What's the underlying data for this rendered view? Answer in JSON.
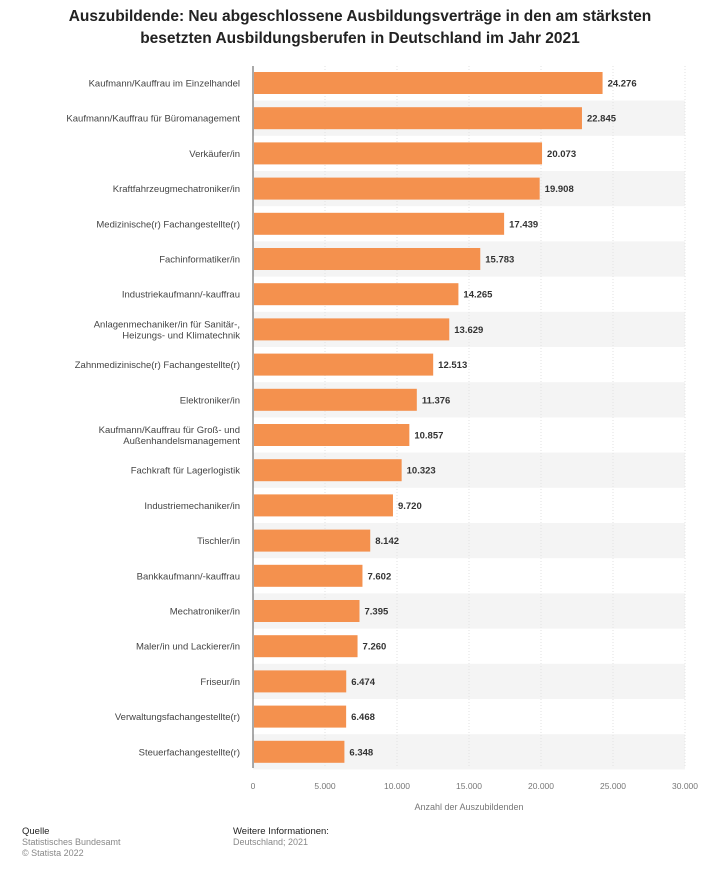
{
  "chart_data": {
    "type": "bar",
    "orientation": "horizontal",
    "title_lines": [
      "Auszubildende: Neu abgeschlossene Ausbildungsverträge in den am stärksten",
      "besetzten Ausbildungsberufen in Deutschland im Jahr 2021"
    ],
    "categories": [
      [
        "Kaufmann/Kauffrau im Einzelhandel"
      ],
      [
        "Kaufmann/Kauffrau für Büromanagement"
      ],
      [
        "Verkäufer/in"
      ],
      [
        "Kraftfahrzeugmechatroniker/in"
      ],
      [
        "Medizinische(r) Fachangestellte(r)"
      ],
      [
        "Fachinformatiker/in"
      ],
      [
        "Industriekaufmann/-kauffrau"
      ],
      [
        "Anlagenmechaniker/in für Sanitär-,",
        "Heizungs- und Klimatechnik"
      ],
      [
        "Zahnmedizinische(r) Fachangestellte(r)"
      ],
      [
        "Elektroniker/in"
      ],
      [
        "Kaufmann/Kauffrau für Groß- und",
        "Außenhandelsmanagement"
      ],
      [
        "Fachkraft für Lagerlogistik"
      ],
      [
        "Industriemechaniker/in"
      ],
      [
        "Tischler/in"
      ],
      [
        "Bankkaufmann/-kauffrau"
      ],
      [
        "Mechatroniker/in"
      ],
      [
        "Maler/in und Lackierer/in"
      ],
      [
        "Friseur/in"
      ],
      [
        "Verwaltungsfachangestellte(r)"
      ],
      [
        "Steuerfachangestellte(r)"
      ]
    ],
    "values": [
      24276,
      22845,
      20073,
      19908,
      17439,
      15783,
      14265,
      13629,
      12513,
      11376,
      10857,
      10323,
      9720,
      8142,
      7602,
      7395,
      7260,
      6474,
      6468,
      6348
    ],
    "value_labels": [
      "24.276",
      "22.845",
      "20.073",
      "19.908",
      "17.439",
      "15.783",
      "14.265",
      "13.629",
      "12.513",
      "11.376",
      "10.857",
      "10.323",
      "9.720",
      "8.142",
      "7.602",
      "7.395",
      "7.260",
      "6.474",
      "6.468",
      "6.348"
    ],
    "xlim": [
      0,
      30000
    ],
    "xticks": [
      0,
      5000,
      10000,
      15000,
      20000,
      25000,
      30000
    ],
    "xtick_labels": [
      "0",
      "5.000",
      "10.000",
      "15.000",
      "20.000",
      "25.000",
      "30.000"
    ],
    "xlabel": "Anzahl der Auszubildenden",
    "grid": true,
    "bar_color": "#f4914e"
  },
  "footer": {
    "source_heading": "Quelle",
    "source_line1": "Statistisches Bundesamt",
    "source_line2": "© Statista 2022",
    "info_heading": "Weitere Informationen:",
    "info_line1": "Deutschland; 2021"
  }
}
